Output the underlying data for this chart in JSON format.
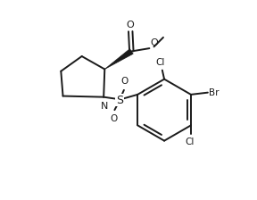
{
  "bg_color": "#ffffff",
  "line_color": "#1a1a1a",
  "line_width": 1.4,
  "figsize": [
    2.88,
    2.24
  ],
  "dpi": 100,
  "xlim": [
    0,
    10
  ],
  "ylim": [
    0,
    10
  ]
}
